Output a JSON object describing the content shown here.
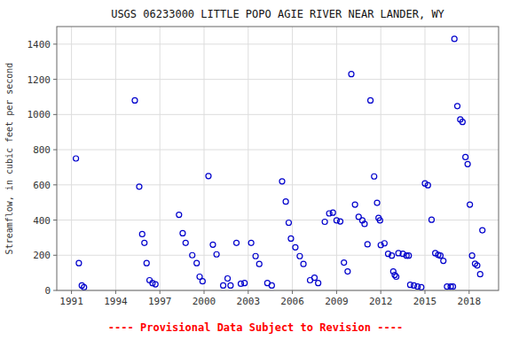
{
  "chart_data": {
    "type": "scatter",
    "title": "USGS 06233000 LITTLE POPO AGIE RIVER NEAR LANDER, WY",
    "ylabel": "Streamflow, in cubic feet per second",
    "subtitle": "---- Provisional Data Subject to Revision ----",
    "color": "#0000cc",
    "marker": "circle-open",
    "grid": true,
    "xlim": [
      1990.0,
      2020.0
    ],
    "ylim": [
      0,
      1500
    ],
    "xticks": [
      1991,
      1994,
      1997,
      2000,
      2003,
      2006,
      2009,
      2012,
      2015,
      2018
    ],
    "yticks": [
      0,
      200,
      400,
      600,
      800,
      1000,
      1200,
      1400
    ],
    "x": [
      1991.3,
      1991.5,
      1991.7,
      1991.85,
      1995.3,
      1995.6,
      1995.8,
      1995.95,
      1996.1,
      1996.3,
      1996.5,
      1996.7,
      1998.3,
      1998.55,
      1998.75,
      1999.2,
      1999.5,
      1999.7,
      1999.9,
      2000.3,
      2000.6,
      2000.85,
      2001.3,
      2001.6,
      2001.8,
      2002.2,
      2002.5,
      2002.75,
      2003.2,
      2003.5,
      2003.75,
      2004.3,
      2004.6,
      2005.3,
      2005.55,
      2005.75,
      2005.9,
      2006.2,
      2006.5,
      2006.75,
      2007.2,
      2007.5,
      2007.75,
      2008.2,
      2008.5,
      2008.75,
      2009.0,
      2009.25,
      2009.5,
      2009.75,
      2010.0,
      2010.25,
      2010.5,
      2010.75,
      2010.9,
      2011.1,
      2011.3,
      2011.55,
      2011.75,
      2011.85,
      2011.95,
      2012.0,
      2012.25,
      2012.5,
      2012.75,
      2012.85,
      2012.95,
      2013.05,
      2013.2,
      2013.5,
      2013.75,
      2013.9,
      2014.0,
      2014.25,
      2014.5,
      2014.75,
      2015.0,
      2015.2,
      2015.45,
      2015.7,
      2015.9,
      2016.05,
      2016.25,
      2016.5,
      2016.75,
      2016.9,
      2017.0,
      2017.2,
      2017.4,
      2017.55,
      2017.75,
      2017.9,
      2018.05,
      2018.2,
      2018.4,
      2018.55,
      2018.75,
      2018.9
    ],
    "values": [
      750,
      155,
      28,
      18,
      1080,
      590,
      320,
      270,
      155,
      58,
      42,
      35,
      430,
      325,
      270,
      200,
      155,
      78,
      52,
      650,
      260,
      205,
      28,
      68,
      28,
      270,
      38,
      42,
      270,
      195,
      150,
      42,
      28,
      620,
      505,
      385,
      295,
      245,
      195,
      150,
      58,
      72,
      42,
      390,
      438,
      442,
      398,
      392,
      158,
      108,
      1230,
      488,
      418,
      398,
      378,
      262,
      1080,
      648,
      498,
      412,
      398,
      258,
      268,
      208,
      198,
      108,
      88,
      78,
      212,
      208,
      198,
      198,
      32,
      28,
      22,
      18,
      608,
      598,
      402,
      212,
      202,
      198,
      168,
      22,
      22,
      22,
      1430,
      1048,
      972,
      958,
      758,
      718,
      488,
      198,
      152,
      142,
      92,
      342
    ]
  }
}
